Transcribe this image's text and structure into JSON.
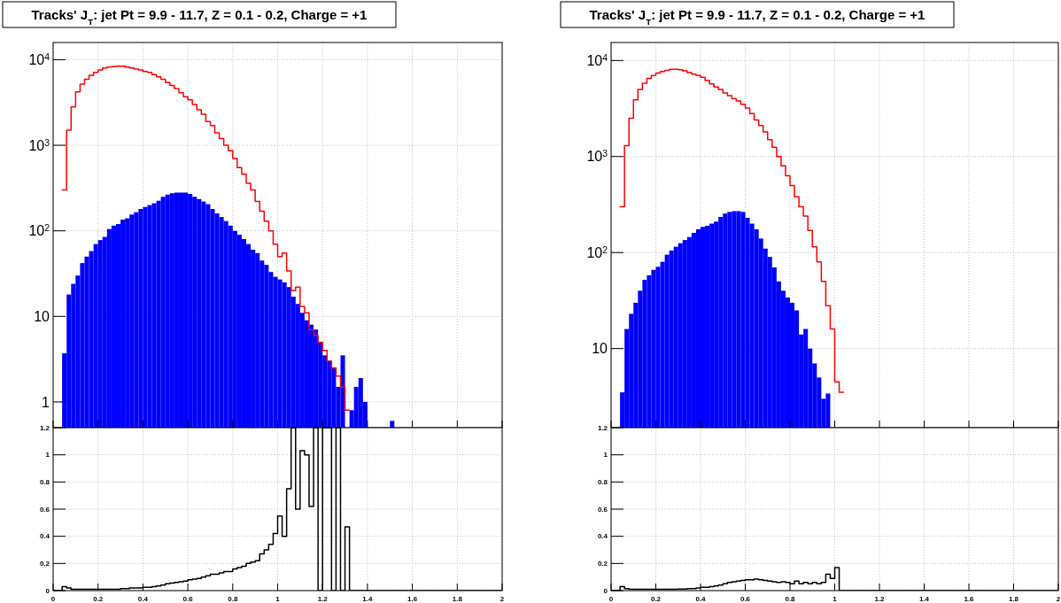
{
  "chart_data": [
    {
      "type": "histogram",
      "title": "Tracks' J$_{T}$: jet Pt = 9.9 - 11.7, Z = 0.1 - 0.2, Charge = +1",
      "log": "y",
      "grid": true,
      "tick_labels": "y",
      "xlim": [
        0,
        2
      ],
      "xticks": [
        0,
        0.2,
        0.4,
        0.6,
        0.8,
        1,
        1.2,
        1.4,
        1.6,
        1.8,
        2
      ],
      "ylim": [
        0.5,
        15900
      ],
      "yticks": [
        1,
        10,
        {
          "value": 100,
          "label": "10$^{2}$"
        },
        {
          "value": 1000,
          "label": "10$^{3}$"
        },
        {
          "value": 10000,
          "label": "10$^{4}$"
        }
      ],
      "bins": [
        0.04,
        0.06,
        0.08,
        0.1,
        0.12,
        0.14,
        0.16,
        0.18,
        0.2,
        0.22,
        0.24,
        0.26,
        0.28,
        0.3,
        0.32,
        0.34,
        0.36,
        0.38,
        0.4,
        0.42,
        0.44,
        0.46,
        0.48,
        0.5,
        0.52,
        0.54,
        0.56,
        0.58,
        0.6,
        0.62,
        0.64,
        0.66,
        0.68,
        0.7,
        0.72,
        0.74,
        0.76,
        0.78,
        0.8,
        0.82,
        0.84,
        0.86,
        0.88,
        0.9,
        0.92,
        0.94,
        0.96,
        0.98,
        1,
        1.02,
        1.04,
        1.06,
        1.08,
        1.1,
        1.12,
        1.14,
        1.16,
        1.18,
        1.2,
        1.22,
        1.24,
        1.26,
        1.28,
        1.3,
        1.32,
        1.34,
        1.36,
        1.38,
        1.4,
        1.5,
        1.52
      ],
      "series": [
        {
          "type": "histogram",
          "color": "#0000ff",
          "values": [
            3.7,
            18,
            24,
            30,
            42,
            50,
            58,
            70,
            78,
            85,
            105,
            115,
            120,
            135,
            140,
            155,
            165,
            180,
            190,
            200,
            210,
            225,
            250,
            265,
            275,
            280,
            280,
            280,
            270,
            250,
            235,
            220,
            205,
            180,
            160,
            145,
            130,
            115,
            100,
            90,
            80,
            70,
            60,
            55,
            45,
            40,
            33,
            29,
            27,
            25,
            22,
            17,
            14,
            11,
            9,
            8,
            7,
            5,
            3.5,
            3,
            2.5,
            1.5,
            3.5,
            null,
            0.8,
            1.5,
            1.9,
            1,
            null,
            0.6
          ]
        },
        {
          "type": "step",
          "color": "#ff0000",
          "x": [
            0.04,
            0.06,
            0.08,
            0.1,
            0.12,
            0.14,
            0.16,
            0.18,
            0.2,
            0.22,
            0.24,
            0.26,
            0.28,
            0.3,
            0.32,
            0.34,
            0.36,
            0.38,
            0.4,
            0.42,
            0.44,
            0.46,
            0.48,
            0.5,
            0.52,
            0.54,
            0.56,
            0.58,
            0.6,
            0.62,
            0.64,
            0.66,
            0.68,
            0.7,
            0.72,
            0.74,
            0.76,
            0.78,
            0.8,
            0.82,
            0.84,
            0.86,
            0.88,
            0.9,
            0.92,
            0.94,
            0.96,
            0.98,
            1,
            1.02,
            1.04,
            1.06,
            1.08,
            1.1,
            1.12,
            1.14,
            1.16,
            1.18,
            1.2,
            1.22,
            1.24,
            1.26,
            1.28,
            1.3,
            1.32
          ],
          "values": [
            300,
            1500,
            2800,
            4200,
            5200,
            5900,
            6600,
            7100,
            7600,
            8000,
            8200,
            8300,
            8400,
            8400,
            8200,
            8000,
            7800,
            7600,
            7300,
            7100,
            6700,
            6300,
            5900,
            5400,
            5000,
            4600,
            4100,
            3700,
            3400,
            3000,
            2600,
            2300,
            1900,
            1700,
            1400,
            1200,
            1000,
            870,
            700,
            550,
            460,
            360,
            300,
            220,
            170,
            130,
            100,
            70,
            50,
            55,
            34,
            20,
            22,
            13,
            11,
            7,
            6,
            5,
            4,
            3,
            2.5,
            2,
            1.5,
            0.8,
            0.8
          ]
        }
      ]
    },
    {
      "type": "histogram",
      "title": "Tracks' J$_{T}$: jet Pt = 9.9 - 11.7, Z = 0.1 - 0.2, Charge = +1",
      "log": "y",
      "grid": true,
      "tick_labels": "y",
      "xlim": [
        0,
        2
      ],
      "xticks": [
        0,
        0.2,
        0.4,
        0.6,
        0.8,
        1,
        1.2,
        1.4,
        1.6,
        1.8,
        2
      ],
      "ylim": [
        1.5,
        15400
      ],
      "yticks": [
        10,
        {
          "value": 100,
          "label": "10$^{2}$"
        },
        {
          "value": 1000,
          "label": "10$^{3}$"
        },
        {
          "value": 10000,
          "label": "10$^{4}$"
        }
      ],
      "bins": [
        0.04,
        0.06,
        0.08,
        0.1,
        0.12,
        0.14,
        0.16,
        0.18,
        0.2,
        0.22,
        0.24,
        0.26,
        0.28,
        0.3,
        0.32,
        0.34,
        0.36,
        0.38,
        0.4,
        0.42,
        0.44,
        0.46,
        0.48,
        0.5,
        0.52,
        0.54,
        0.56,
        0.58,
        0.6,
        0.62,
        0.64,
        0.66,
        0.68,
        0.7,
        0.72,
        0.74,
        0.76,
        0.78,
        0.8,
        0.82,
        0.84,
        0.86,
        0.88,
        0.9,
        0.92,
        0.94,
        0.96,
        0.98
      ],
      "series": [
        {
          "type": "histogram",
          "color": "#0000ff",
          "values": [
            3.5,
            16,
            23,
            30,
            40,
            52,
            58,
            66,
            71,
            80,
            95,
            105,
            115,
            125,
            135,
            145,
            160,
            175,
            185,
            190,
            200,
            210,
            235,
            255,
            265,
            270,
            270,
            265,
            230,
            200,
            175,
            140,
            110,
            90,
            70,
            50,
            40,
            34,
            30,
            25,
            14,
            16,
            10,
            7,
            5,
            3,
            3.4
          ]
        },
        {
          "type": "step",
          "color": "#ff0000",
          "x": [
            0.04,
            0.06,
            0.08,
            0.1,
            0.12,
            0.14,
            0.16,
            0.18,
            0.2,
            0.22,
            0.24,
            0.26,
            0.28,
            0.3,
            0.32,
            0.34,
            0.36,
            0.38,
            0.4,
            0.42,
            0.44,
            0.46,
            0.48,
            0.5,
            0.52,
            0.54,
            0.56,
            0.58,
            0.6,
            0.62,
            0.64,
            0.66,
            0.68,
            0.7,
            0.72,
            0.74,
            0.76,
            0.78,
            0.8,
            0.82,
            0.84,
            0.86,
            0.88,
            0.9,
            0.92,
            0.94,
            0.96,
            0.98,
            1,
            1.02,
            1.04
          ],
          "values": [
            300,
            1300,
            2500,
            3900,
            5000,
            5800,
            6500,
            7000,
            7400,
            7700,
            7900,
            8100,
            8100,
            8000,
            7800,
            7500,
            7200,
            7000,
            6700,
            6200,
            5700,
            5300,
            5000,
            4600,
            4300,
            4000,
            3800,
            3500,
            3200,
            2800,
            2400,
            2100,
            1800,
            1500,
            1250,
            1000,
            800,
            630,
            500,
            380,
            300,
            240,
            170,
            115,
            80,
            50,
            28,
            16,
            4.5,
            3.5,
            3.5
          ]
        }
      ]
    },
    {
      "type": "step",
      "grid": true,
      "xlim": [
        0,
        2
      ],
      "xticks": [
        0,
        0.2,
        0.4,
        0.6,
        0.8,
        1,
        1.2,
        1.4,
        1.6,
        1.8,
        2
      ],
      "ylim": [
        0,
        1.2
      ],
      "yticks": [
        0,
        0.2,
        0.4,
        0.6,
        0.8,
        1,
        1.2
      ],
      "series": [
        {
          "color": "#000000",
          "x": [
            0,
            0.04,
            0.06,
            0.08,
            0.1,
            0.12,
            0.14,
            0.16,
            0.18,
            0.2,
            0.22,
            0.24,
            0.26,
            0.28,
            0.3,
            0.32,
            0.34,
            0.36,
            0.38,
            0.4,
            0.42,
            0.44,
            0.46,
            0.48,
            0.5,
            0.52,
            0.54,
            0.56,
            0.58,
            0.6,
            0.62,
            0.64,
            0.66,
            0.68,
            0.7,
            0.72,
            0.74,
            0.76,
            0.78,
            0.8,
            0.82,
            0.84,
            0.86,
            0.88,
            0.9,
            0.92,
            0.94,
            0.96,
            0.98,
            1,
            1.02,
            1.04,
            1.06,
            1.08,
            1.1,
            1.12,
            1.14,
            1.16,
            1.18,
            1.2,
            1.22,
            1.24,
            1.26,
            1.28,
            1.3,
            1.32,
            2
          ],
          "values": [
            0,
            0.03,
            0.02,
            0.01,
            0.01,
            0.01,
            0.01,
            0.01,
            0.01,
            0.01,
            0.01,
            0.01,
            0.01,
            0.01,
            0.015,
            0.015,
            0.02,
            0.02,
            0.02,
            0.025,
            0.025,
            0.03,
            0.035,
            0.04,
            0.05,
            0.055,
            0.06,
            0.065,
            0.07,
            0.08,
            0.085,
            0.09,
            0.1,
            0.11,
            0.12,
            0.12,
            0.13,
            0.14,
            0.14,
            0.16,
            0.17,
            0.18,
            0.2,
            0.21,
            0.22,
            0.27,
            0.3,
            0.34,
            0.42,
            0.55,
            0.4,
            0.75,
            1.2,
            0.6,
            1.03,
            1,
            0.62,
            1.2,
            0,
            1.2,
            1.2,
            0,
            1.2,
            0,
            0.47,
            0,
            0
          ]
        }
      ]
    },
    {
      "type": "step",
      "grid": true,
      "xlim": [
        0,
        2
      ],
      "xticks": [
        0,
        0.2,
        0.4,
        0.6,
        0.8,
        1,
        1.2,
        1.4,
        1.6,
        1.8,
        2
      ],
      "ylim": [
        0,
        1.2
      ],
      "yticks": [
        0,
        0.2,
        0.4,
        0.6,
        0.8,
        1,
        1.2
      ],
      "series": [
        {
          "color": "#000000",
          "x": [
            0,
            0.04,
            0.06,
            0.08,
            0.1,
            0.12,
            0.14,
            0.16,
            0.18,
            0.2,
            0.22,
            0.24,
            0.26,
            0.28,
            0.3,
            0.32,
            0.34,
            0.36,
            0.38,
            0.4,
            0.42,
            0.44,
            0.46,
            0.48,
            0.5,
            0.52,
            0.54,
            0.56,
            0.58,
            0.6,
            0.62,
            0.64,
            0.66,
            0.68,
            0.7,
            0.72,
            0.74,
            0.76,
            0.78,
            0.8,
            0.82,
            0.84,
            0.86,
            0.88,
            0.9,
            0.92,
            0.94,
            0.96,
            0.98,
            1,
            1.02,
            2
          ],
          "values": [
            0,
            0.03,
            0.015,
            0.01,
            0.01,
            0.01,
            0.01,
            0.01,
            0.01,
            0.01,
            0.01,
            0.01,
            0.01,
            0.01,
            0.012,
            0.012,
            0.015,
            0.015,
            0.02,
            0.025,
            0.025,
            0.03,
            0.035,
            0.04,
            0.05,
            0.06,
            0.065,
            0.07,
            0.075,
            0.08,
            0.08,
            0.085,
            0.08,
            0.075,
            0.07,
            0.065,
            0.06,
            0.065,
            0.06,
            0.05,
            0.07,
            0.05,
            0.06,
            0.05,
            0.06,
            0.05,
            0.06,
            0.12,
            0.09,
            0.17,
            0,
            0
          ]
        }
      ]
    }
  ]
}
